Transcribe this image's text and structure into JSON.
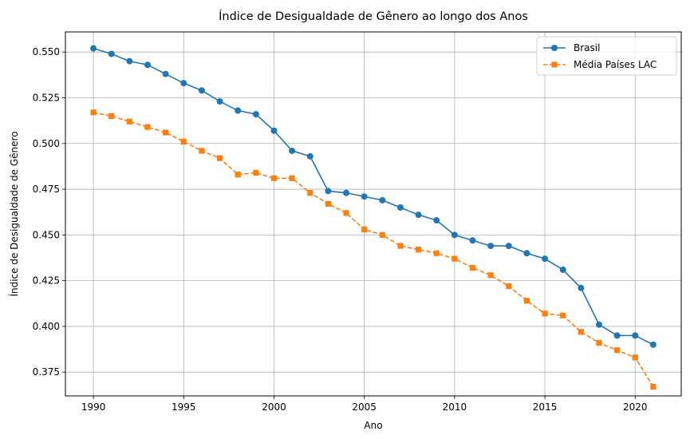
{
  "chart_data": {
    "type": "line",
    "title": "Índice de Desigualdade de Gênero ao longo dos Anos",
    "xlabel": "Ano",
    "ylabel": "Índice de Desigualdade de Gênero",
    "xlim": [
      1988.45,
      2022.55
    ],
    "ylim": [
      0.362,
      0.561
    ],
    "xticks": [
      1990,
      1995,
      2000,
      2005,
      2010,
      2015,
      2020
    ],
    "yticks": [
      0.375,
      0.4,
      0.425,
      0.45,
      0.475,
      0.5,
      0.525,
      0.55
    ],
    "grid": true,
    "legend_position": "top-right",
    "x": [
      1990,
      1991,
      1992,
      1993,
      1994,
      1995,
      1996,
      1997,
      1998,
      1999,
      2000,
      2001,
      2002,
      2003,
      2004,
      2005,
      2006,
      2007,
      2008,
      2009,
      2010,
      2011,
      2012,
      2013,
      2014,
      2015,
      2016,
      2017,
      2018,
      2019,
      2020,
      2021
    ],
    "series": [
      {
        "name": "Brasil",
        "color": "#1f77b4",
        "marker": "circle",
        "linestyle": "solid",
        "values": [
          0.552,
          0.549,
          0.545,
          0.543,
          0.538,
          0.533,
          0.529,
          0.523,
          0.518,
          0.516,
          0.507,
          0.496,
          0.493,
          0.474,
          0.473,
          0.471,
          0.469,
          0.465,
          0.461,
          0.458,
          0.45,
          0.447,
          0.444,
          0.444,
          0.44,
          0.437,
          0.431,
          0.421,
          0.401,
          0.395,
          0.395,
          0.39
        ]
      },
      {
        "name": "Média Países LAC",
        "color": "#ff7f0e",
        "marker": "square",
        "linestyle": "dashed",
        "values": [
          0.517,
          0.515,
          0.512,
          0.509,
          0.506,
          0.501,
          0.496,
          0.492,
          0.483,
          0.484,
          0.481,
          0.481,
          0.473,
          0.467,
          0.462,
          0.453,
          0.45,
          0.444,
          0.442,
          0.44,
          0.437,
          0.432,
          0.428,
          0.422,
          0.414,
          0.407,
          0.406,
          0.397,
          0.391,
          0.387,
          0.383,
          0.367
        ]
      }
    ]
  }
}
